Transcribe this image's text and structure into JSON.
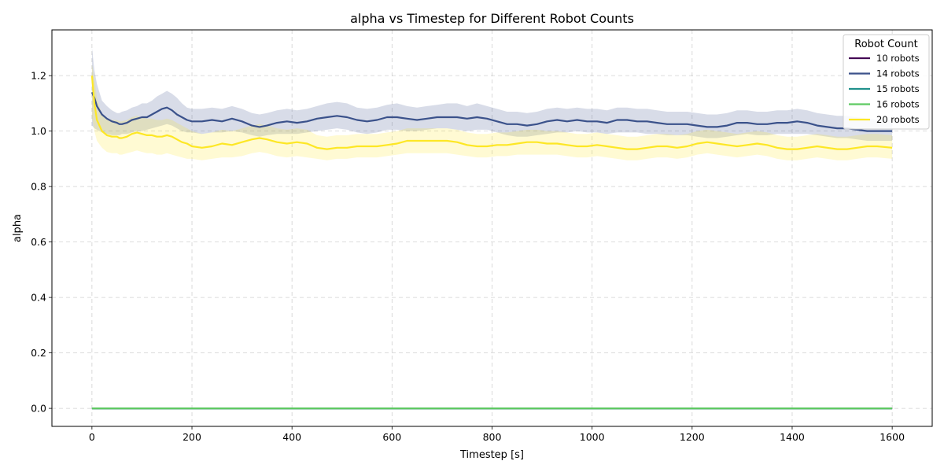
{
  "chart_data": {
    "type": "line",
    "title": "alpha vs Timestep for Different Robot Counts",
    "xlabel": "Timestep [s]",
    "ylabel": "alpha",
    "xlim": [
      -80,
      1680
    ],
    "ylim": [
      -0.065,
      1.365
    ],
    "xticks": [
      0,
      200,
      400,
      600,
      800,
      1000,
      1200,
      1400,
      1600
    ],
    "yticks": [
      0.0,
      0.2,
      0.4,
      0.6,
      0.8,
      1.0,
      1.2
    ],
    "grid": true,
    "legend": {
      "title": "Robot Count",
      "placement": "top-right"
    },
    "series": [
      {
        "name": "10 robots",
        "color": "#440154",
        "x": [
          0,
          1600
        ],
        "y": [
          0.0,
          0.0
        ],
        "band_lower": [
          0.0,
          0.0
        ],
        "band_upper": [
          0.0,
          0.0
        ]
      },
      {
        "name": "14 robots",
        "color": "#3b528b",
        "x": [
          0,
          5,
          10,
          20,
          30,
          40,
          50,
          55,
          60,
          70,
          80,
          90,
          100,
          110,
          120,
          130,
          140,
          150,
          160,
          170,
          180,
          190,
          200,
          220,
          240,
          260,
          280,
          300,
          320,
          335,
          350,
          370,
          390,
          410,
          430,
          450,
          470,
          490,
          510,
          530,
          550,
          570,
          590,
          610,
          630,
          650,
          670,
          690,
          710,
          730,
          750,
          770,
          790,
          810,
          830,
          850,
          870,
          890,
          910,
          930,
          950,
          970,
          990,
          1010,
          1030,
          1050,
          1070,
          1090,
          1110,
          1130,
          1150,
          1170,
          1190,
          1210,
          1230,
          1250,
          1270,
          1290,
          1310,
          1330,
          1350,
          1370,
          1390,
          1410,
          1430,
          1450,
          1470,
          1490,
          1510,
          1530,
          1550,
          1570,
          1600
        ],
        "y": [
          1.14,
          1.12,
          1.09,
          1.06,
          1.045,
          1.035,
          1.03,
          1.025,
          1.025,
          1.03,
          1.04,
          1.045,
          1.05,
          1.05,
          1.06,
          1.07,
          1.08,
          1.085,
          1.075,
          1.06,
          1.05,
          1.04,
          1.035,
          1.035,
          1.04,
          1.035,
          1.045,
          1.035,
          1.02,
          1.015,
          1.02,
          1.03,
          1.035,
          1.03,
          1.035,
          1.045,
          1.05,
          1.055,
          1.05,
          1.04,
          1.035,
          1.04,
          1.05,
          1.05,
          1.045,
          1.04,
          1.045,
          1.05,
          1.05,
          1.05,
          1.045,
          1.05,
          1.045,
          1.035,
          1.025,
          1.025,
          1.02,
          1.025,
          1.035,
          1.04,
          1.035,
          1.04,
          1.035,
          1.035,
          1.03,
          1.04,
          1.04,
          1.035,
          1.035,
          1.03,
          1.025,
          1.025,
          1.025,
          1.02,
          1.015,
          1.015,
          1.02,
          1.03,
          1.03,
          1.025,
          1.025,
          1.03,
          1.03,
          1.035,
          1.03,
          1.02,
          1.015,
          1.01,
          1.01,
          1.005,
          1.0,
          1.0,
          1.0
        ],
        "band_lower": [
          1.02,
          1.01,
          1.005,
          0.995,
          0.99,
          0.985,
          0.985,
          0.985,
          0.99,
          0.99,
          0.995,
          1.0,
          1.0,
          1.005,
          1.01,
          1.015,
          1.02,
          1.025,
          1.02,
          1.01,
          1.0,
          0.995,
          0.995,
          0.99,
          0.995,
          0.995,
          1.0,
          0.995,
          0.985,
          0.98,
          0.985,
          0.99,
          0.99,
          0.99,
          0.995,
          1.0,
          1.005,
          1.01,
          1.005,
          0.995,
          0.99,
          0.995,
          1.005,
          1.005,
          1.0,
          1.0,
          1.005,
          1.01,
          1.01,
          1.005,
          1.0,
          1.005,
          1.005,
          0.995,
          0.985,
          0.98,
          0.98,
          0.985,
          0.99,
          0.995,
          0.995,
          1.0,
          0.995,
          0.995,
          0.99,
          0.995,
          0.995,
          0.995,
          0.99,
          0.99,
          0.985,
          0.985,
          0.985,
          0.98,
          0.975,
          0.975,
          0.98,
          0.985,
          0.99,
          0.985,
          0.985,
          0.99,
          0.99,
          0.99,
          0.99,
          0.985,
          0.98,
          0.975,
          0.975,
          0.97,
          0.965,
          0.965,
          0.965
        ],
        "band_upper": [
          1.3,
          1.22,
          1.17,
          1.11,
          1.09,
          1.075,
          1.065,
          1.065,
          1.07,
          1.075,
          1.085,
          1.09,
          1.1,
          1.1,
          1.11,
          1.125,
          1.135,
          1.145,
          1.135,
          1.12,
          1.1,
          1.085,
          1.08,
          1.08,
          1.085,
          1.08,
          1.09,
          1.08,
          1.065,
          1.06,
          1.065,
          1.075,
          1.08,
          1.075,
          1.08,
          1.09,
          1.1,
          1.105,
          1.1,
          1.085,
          1.08,
          1.085,
          1.095,
          1.1,
          1.09,
          1.085,
          1.09,
          1.095,
          1.1,
          1.1,
          1.09,
          1.1,
          1.09,
          1.08,
          1.07,
          1.07,
          1.065,
          1.07,
          1.08,
          1.085,
          1.08,
          1.085,
          1.08,
          1.08,
          1.075,
          1.085,
          1.085,
          1.08,
          1.08,
          1.075,
          1.07,
          1.07,
          1.07,
          1.065,
          1.06,
          1.06,
          1.065,
          1.075,
          1.075,
          1.07,
          1.07,
          1.075,
          1.075,
          1.08,
          1.075,
          1.065,
          1.06,
          1.055,
          1.055,
          1.05,
          1.045,
          1.04,
          1.04
        ]
      },
      {
        "name": "15 robots",
        "color": "#21918c",
        "x": [
          0,
          1600
        ],
        "y": [
          0.0,
          0.0
        ],
        "band_lower": [
          0.0,
          0.0
        ],
        "band_upper": [
          0.0,
          0.0
        ]
      },
      {
        "name": "16 robots",
        "color": "#5ec962",
        "x": [
          0,
          1600
        ],
        "y": [
          0.0,
          0.0
        ],
        "band_lower": [
          0.0,
          0.0
        ],
        "band_upper": [
          0.0,
          0.0
        ]
      },
      {
        "name": "20 robots",
        "color": "#fde725",
        "x": [
          0,
          5,
          10,
          20,
          30,
          40,
          50,
          55,
          60,
          70,
          80,
          90,
          100,
          110,
          120,
          130,
          140,
          150,
          160,
          170,
          180,
          190,
          200,
          220,
          240,
          260,
          280,
          300,
          320,
          335,
          350,
          370,
          390,
          410,
          430,
          450,
          470,
          490,
          510,
          530,
          550,
          570,
          590,
          610,
          630,
          650,
          670,
          690,
          710,
          730,
          750,
          770,
          790,
          810,
          830,
          850,
          870,
          890,
          910,
          930,
          950,
          970,
          990,
          1010,
          1030,
          1050,
          1070,
          1090,
          1110,
          1130,
          1150,
          1170,
          1190,
          1210,
          1230,
          1250,
          1270,
          1290,
          1310,
          1330,
          1350,
          1370,
          1390,
          1410,
          1430,
          1450,
          1470,
          1490,
          1510,
          1530,
          1550,
          1570,
          1600
        ],
        "y": [
          1.2,
          1.1,
          1.04,
          1.0,
          0.985,
          0.98,
          0.98,
          0.975,
          0.975,
          0.98,
          0.99,
          0.995,
          0.99,
          0.985,
          0.985,
          0.98,
          0.98,
          0.985,
          0.98,
          0.97,
          0.96,
          0.955,
          0.945,
          0.94,
          0.945,
          0.955,
          0.95,
          0.96,
          0.97,
          0.975,
          0.97,
          0.96,
          0.955,
          0.96,
          0.955,
          0.94,
          0.935,
          0.94,
          0.94,
          0.945,
          0.945,
          0.945,
          0.95,
          0.955,
          0.965,
          0.965,
          0.965,
          0.965,
          0.965,
          0.96,
          0.95,
          0.945,
          0.945,
          0.95,
          0.95,
          0.955,
          0.96,
          0.96,
          0.955,
          0.955,
          0.95,
          0.945,
          0.945,
          0.95,
          0.945,
          0.94,
          0.935,
          0.935,
          0.94,
          0.945,
          0.945,
          0.94,
          0.945,
          0.955,
          0.96,
          0.955,
          0.95,
          0.945,
          0.95,
          0.955,
          0.95,
          0.94,
          0.935,
          0.935,
          0.94,
          0.945,
          0.94,
          0.935,
          0.935,
          0.94,
          0.945,
          0.945,
          0.94
        ],
        "band_lower": [
          1.05,
          1.0,
          0.965,
          0.94,
          0.925,
          0.92,
          0.92,
          0.915,
          0.915,
          0.92,
          0.925,
          0.93,
          0.925,
          0.92,
          0.92,
          0.915,
          0.915,
          0.92,
          0.915,
          0.91,
          0.905,
          0.9,
          0.9,
          0.895,
          0.9,
          0.905,
          0.905,
          0.91,
          0.92,
          0.925,
          0.92,
          0.91,
          0.905,
          0.91,
          0.905,
          0.9,
          0.895,
          0.9,
          0.9,
          0.905,
          0.905,
          0.905,
          0.91,
          0.915,
          0.92,
          0.92,
          0.92,
          0.92,
          0.92,
          0.915,
          0.91,
          0.905,
          0.905,
          0.91,
          0.91,
          0.915,
          0.915,
          0.915,
          0.915,
          0.915,
          0.91,
          0.905,
          0.905,
          0.91,
          0.905,
          0.9,
          0.895,
          0.895,
          0.9,
          0.905,
          0.905,
          0.9,
          0.905,
          0.915,
          0.92,
          0.915,
          0.91,
          0.905,
          0.91,
          0.915,
          0.91,
          0.9,
          0.895,
          0.895,
          0.9,
          0.905,
          0.9,
          0.895,
          0.895,
          0.9,
          0.905,
          0.905,
          0.9
        ],
        "band_upper": [
          1.24,
          1.19,
          1.12,
          1.06,
          1.045,
          1.04,
          1.04,
          1.035,
          1.035,
          1.04,
          1.05,
          1.055,
          1.05,
          1.045,
          1.045,
          1.04,
          1.04,
          1.045,
          1.04,
          1.03,
          1.02,
          1.01,
          1.0,
          0.99,
          0.995,
          1.005,
          1.0,
          1.01,
          1.02,
          1.025,
          1.02,
          1.01,
          1.005,
          1.01,
          1.005,
          0.985,
          0.98,
          0.985,
          0.985,
          0.99,
          0.99,
          0.99,
          0.995,
          1.0,
          1.01,
          1.01,
          1.01,
          1.01,
          1.01,
          1.005,
          0.995,
          0.99,
          0.99,
          0.995,
          0.995,
          1.0,
          1.005,
          1.005,
          1.0,
          1.0,
          0.995,
          0.99,
          0.99,
          0.995,
          0.99,
          0.985,
          0.98,
          0.98,
          0.985,
          0.99,
          0.99,
          0.985,
          0.99,
          1.0,
          1.005,
          1.0,
          0.995,
          0.99,
          0.995,
          1.0,
          0.995,
          0.985,
          0.98,
          0.98,
          0.985,
          0.99,
          0.985,
          0.98,
          0.98,
          0.985,
          0.99,
          0.99,
          0.985
        ]
      }
    ]
  }
}
